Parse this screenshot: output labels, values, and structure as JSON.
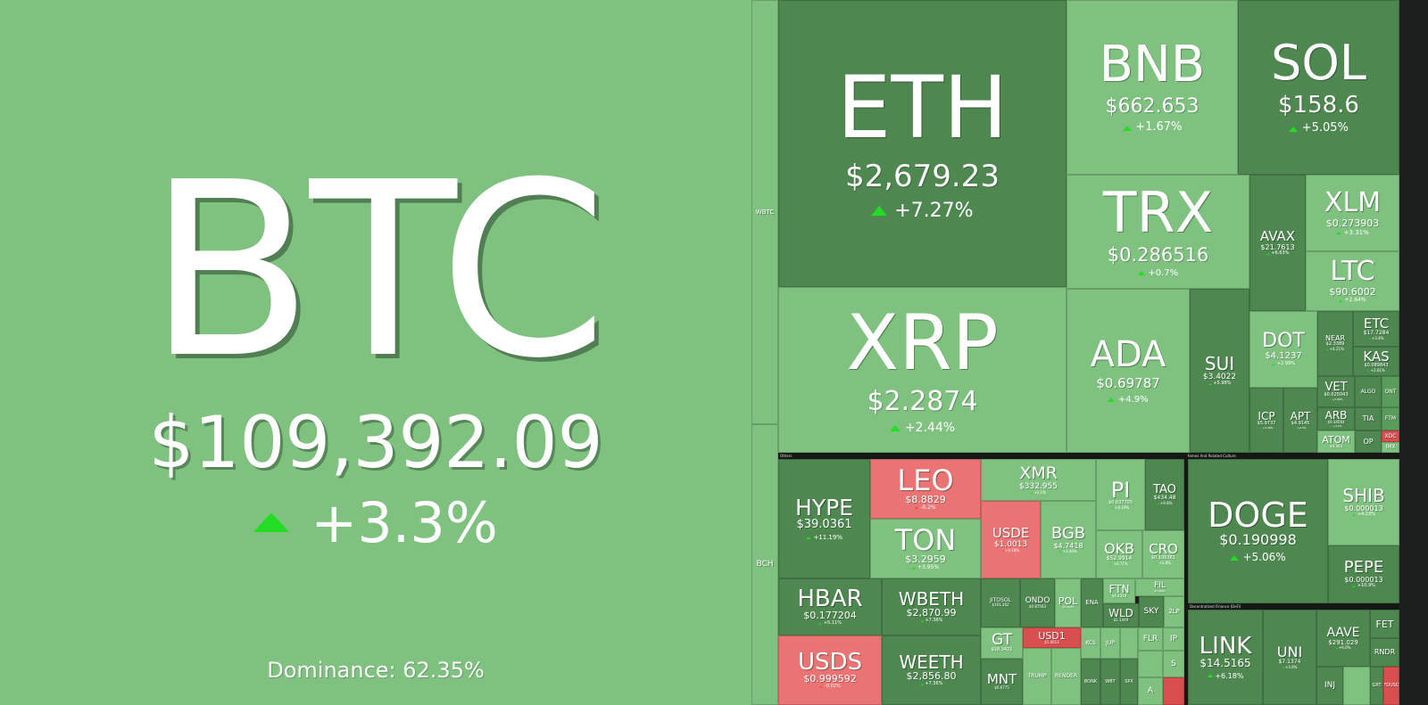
{
  "btc": {
    "symbol": "BTC",
    "price": "$109,392.09",
    "change": "+3.3%",
    "dominance": "Dominance: 62.35%"
  },
  "column": {
    "wbtc": {
      "symbol": "WBTC"
    },
    "bch": {
      "symbol": "BCH"
    }
  },
  "sections": {
    "others": "Others",
    "memes": "Memes And Related Culture",
    "defi": "Decentralized Finance (DeFi)"
  },
  "top": {
    "eth": {
      "symbol": "ETH",
      "price": "$2,679.23",
      "change": "+7.27%"
    },
    "bnb": {
      "symbol": "BNB",
      "price": "$662.653",
      "change": "+1.67%"
    },
    "sol": {
      "symbol": "SOL",
      "price": "$158.6",
      "change": "+5.05%"
    },
    "trx": {
      "symbol": "TRX",
      "price": "$0.286516",
      "change": "+0.7%"
    },
    "xlm": {
      "symbol": "XLM",
      "price": "$0.273903",
      "change": "+3.31%"
    },
    "avax": {
      "symbol": "AVAX",
      "price": "$21.7613",
      "change": "+6.63%"
    },
    "ltc": {
      "symbol": "LTC",
      "price": "$90.6002",
      "change": "+2.64%"
    },
    "xrp": {
      "symbol": "XRP",
      "price": "$2.2874",
      "change": "+2.44%"
    },
    "ada": {
      "symbol": "ADA",
      "price": "$0.69787",
      "change": "+4.9%"
    },
    "sui": {
      "symbol": "SUI",
      "price": "$3.4022",
      "change": "+5.98%"
    },
    "dot": {
      "symbol": "DOT",
      "price": "$4.1237",
      "change": "+2.99%"
    },
    "near": {
      "symbol": "NEAR",
      "price": "$2.3389",
      "change": "+4.21%"
    },
    "etc": {
      "symbol": "ETC",
      "price": "$17.7284",
      "change": "+3.4%"
    },
    "kas": {
      "symbol": "KAS",
      "price": "$0.089843",
      "change": "+2.61%"
    },
    "vet": {
      "symbol": "VET",
      "price": "$0.025043",
      "change": "+3.98%"
    },
    "algo": {
      "symbol": "ALGO"
    },
    "ont": {
      "symbol": "ONT"
    },
    "icp": {
      "symbol": "ICP",
      "price": "$5.9737",
      "change": "+3.48%"
    },
    "apt": {
      "symbol": "APT",
      "price": "$4.9145",
      "change": "+2.5%"
    },
    "arb": {
      "symbol": "ARB",
      "price": "$0.34564",
      "change": "+4.5%"
    },
    "tia": {
      "symbol": "TIA"
    },
    "ftm": {
      "symbol": "FTM"
    },
    "atom": {
      "symbol": "ATOM",
      "price": "$4.303",
      "change": "+2.2%"
    },
    "op": {
      "symbol": "OP"
    },
    "xdc": {
      "symbol": "XDC"
    },
    "imx": {
      "symbol": "IMX"
    }
  },
  "others": {
    "hype": {
      "symbol": "HYPE",
      "price": "$39.0361",
      "change": "+11.19%"
    },
    "leo": {
      "symbol": "LEO",
      "price": "$8.8829",
      "change": "-0.2%"
    },
    "ton": {
      "symbol": "TON",
      "price": "$3.2959",
      "change": "+3.95%"
    },
    "xmr": {
      "symbol": "XMR",
      "price": "$332.955",
      "change": "+2.1%"
    },
    "pi": {
      "symbol": "PI",
      "price": "$0.637705",
      "change": "+6.19%"
    },
    "tao": {
      "symbol": "TAO",
      "price": "$434.48",
      "change": "+9.8%"
    },
    "usde": {
      "symbol": "USDE",
      "price": "$1.0013",
      "change": "+0.18%"
    },
    "bgb": {
      "symbol": "BGB",
      "price": "$4.7418",
      "change": "+3.44%"
    },
    "okb": {
      "symbol": "OKB",
      "price": "$52.9914",
      "change": "+0.77%"
    },
    "cro": {
      "symbol": "CRO",
      "price": "$0.100361",
      "change": "+3.8%"
    },
    "hbar": {
      "symbol": "HBAR",
      "price": "$0.177204",
      "change": "+5.11%"
    },
    "wbeth": {
      "symbol": "WBETH",
      "price": "$2,870.99",
      "change": "+7.36%"
    },
    "jitosol": {
      "symbol": "JITOSOL",
      "price": "$191.262",
      "change": "+5.2%"
    },
    "ondo": {
      "symbol": "ONDO",
      "price": "$0.87563",
      "change": "+4.9%"
    },
    "pol": {
      "symbol": "POL",
      "price": "$0.2234",
      "change": "+4.1%"
    },
    "ena": {
      "symbol": "ENA",
      "price": "$0.32"
    },
    "ftn": {
      "symbol": "FTN",
      "price": "$4.4319"
    },
    "fil": {
      "symbol": "FIL",
      "price": "$2.4964"
    },
    "wld": {
      "symbol": "WLD",
      "price": "$1.1449"
    },
    "sky": {
      "symbol": "SKY"
    },
    "zlp": {
      "symbol": "2LP"
    },
    "usds": {
      "symbol": "USDS",
      "price": "$0.999592",
      "change": "-0.02%"
    },
    "weeth": {
      "symbol": "WEETH",
      "price": "$2,856.80",
      "change": "+7.36%"
    },
    "gt": {
      "symbol": "GT",
      "price": "$18.3421",
      "change": "+2.9%"
    },
    "usd1": {
      "symbol": "USD1",
      "price": "$1.0012"
    },
    "kcs": {
      "symbol": "KCS"
    },
    "jup": {
      "symbol": "JUP"
    },
    "flr": {
      "symbol": "FLR"
    },
    "ip": {
      "symbol": "IP"
    },
    "mnt": {
      "symbol": "MNT",
      "price": "$0.6775",
      "change": "+4.1%"
    },
    "trump": {
      "symbol": "TRUMP"
    },
    "render": {
      "symbol": "RENDER"
    },
    "bonk": {
      "symbol": "BONK"
    },
    "wbt": {
      "symbol": "WBT"
    },
    "spx": {
      "symbol": "SPX"
    },
    "s": {
      "symbol": "S"
    },
    "a": {
      "symbol": "A"
    }
  },
  "memes": {
    "doge": {
      "symbol": "DOGE",
      "price": "$0.190998",
      "change": "+5.06%"
    },
    "shib": {
      "symbol": "SHIB",
      "price": "$0.000013",
      "change": "+4.23%"
    },
    "pepe": {
      "symbol": "PEPE",
      "price": "$0.000013",
      "change": "+10.9%"
    }
  },
  "defi": {
    "link": {
      "symbol": "LINK",
      "price": "$14.5165",
      "change": "+6.18%"
    },
    "uni": {
      "symbol": "UNI",
      "price": "$7.1374",
      "change": "+3.9%"
    },
    "aave": {
      "symbol": "AAVE",
      "price": "$291.029",
      "change": "+6.0%"
    },
    "fet": {
      "symbol": "FET"
    },
    "rndr": {
      "symbol": "RNDR"
    },
    "inj": {
      "symbol": "INJ"
    },
    "grt": {
      "symbol": "GRT"
    },
    "fdusd": {
      "symbol": "FDUSD"
    }
  },
  "colors": {
    "up": "#22dd22",
    "down": "#ff4444",
    "light_green": "#7fc280",
    "dark_green": "#4e8750",
    "red": "#ea7373"
  }
}
